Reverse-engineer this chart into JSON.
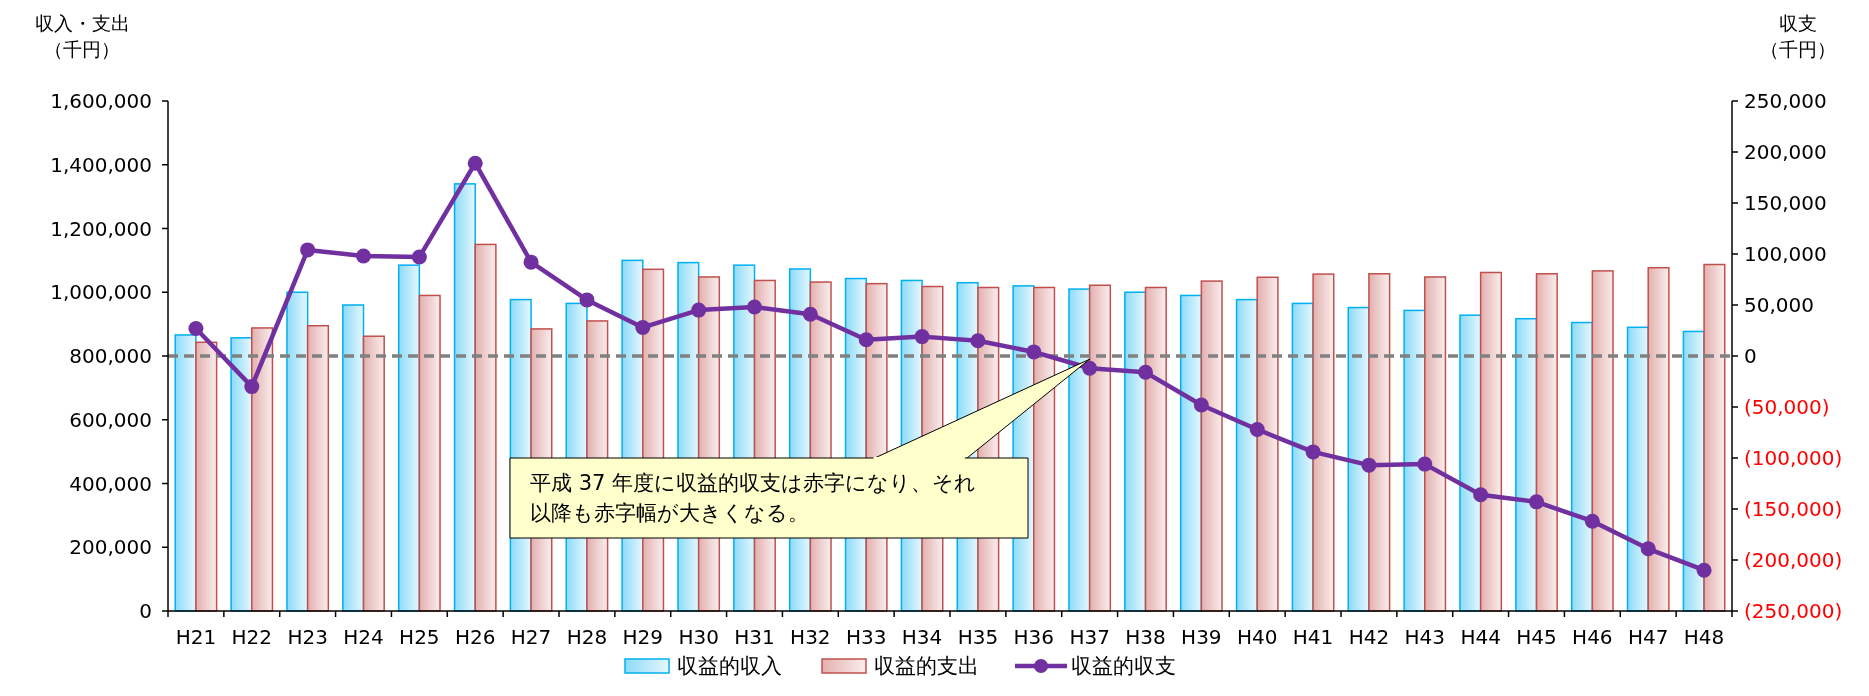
{
  "chart_data": {
    "type": "bar",
    "ylabel": "収入・支出（千円）",
    "y2label": "収支（千円）",
    "categories": [
      "H21",
      "H22",
      "H23",
      "H24",
      "H25",
      "H26",
      "H27",
      "H28",
      "H29",
      "H30",
      "H31",
      "H32",
      "H33",
      "H34",
      "H35",
      "H36",
      "H37",
      "H38",
      "H39",
      "H40",
      "H41",
      "H42",
      "H43",
      "H44",
      "H45",
      "H46",
      "H47",
      "H48"
    ],
    "series": [
      {
        "name": "収益的収入",
        "color": "#00b0f0",
        "values": [
          866000,
          857000,
          1000000,
          960000,
          1085000,
          1340000,
          977000,
          965000,
          1100000,
          1093000,
          1085000,
          1073000,
          1043000,
          1037000,
          1030000,
          1020000,
          1010000,
          1000000,
          990000,
          977000,
          965000,
          952000,
          943000,
          928000,
          917000,
          905000,
          890000,
          877000
        ]
      },
      {
        "name": "収益的支出",
        "color": "#c0504d",
        "values": [
          843000,
          888000,
          895000,
          862000,
          990000,
          1150000,
          885000,
          910000,
          1072000,
          1048000,
          1037000,
          1032000,
          1027000,
          1018000,
          1015000,
          1015000,
          1022000,
          1015000,
          1035000,
          1047000,
          1057000,
          1058000,
          1048000,
          1062000,
          1058000,
          1067000,
          1077000,
          1087000
        ]
      },
      {
        "name": "収益的収支",
        "type": "line",
        "axis": "y2",
        "color": "#7030a0",
        "values": [
          27000,
          -30000,
          104000,
          98000,
          97000,
          189000,
          92000,
          55000,
          28000,
          45000,
          48000,
          41000,
          16000,
          19000,
          15000,
          4000,
          -12000,
          -16000,
          -48000,
          -72000,
          -94000,
          -107000,
          -106000,
          -136000,
          -143000,
          -162000,
          -189000,
          -210000
        ]
      }
    ],
    "ylim": [
      0,
      1600000
    ],
    "yticks": [
      0,
      {
        "value": 200000,
        "label": "200,000"
      },
      {
        "value": 400000,
        "label": "400,000"
      },
      {
        "value": 600000,
        "label": "600,000"
      },
      {
        "value": 800000,
        "label": "800,000"
      },
      {
        "value": 1000000,
        "label": "1,000,000"
      },
      {
        "value": 1200000,
        "label": "1,200,000"
      },
      {
        "value": 1400000,
        "label": "1,400,000"
      },
      {
        "value": 1600000,
        "label": "1,600,000"
      }
    ],
    "y2lim": [
      -250000,
      250000
    ],
    "y2ticks": [
      {
        "value": -250000,
        "label": "(250,000)"
      },
      {
        "value": -200000,
        "label": "(200,000)"
      },
      {
        "value": -150000,
        "label": "(150,000)"
      },
      {
        "value": -100000,
        "label": "(100,000)"
      },
      {
        "value": -50000,
        "label": "(50,000)"
      },
      0,
      {
        "value": 50000,
        "label": "50,000"
      },
      {
        "value": 100000,
        "label": "100,000"
      },
      {
        "value": 150000,
        "label": "150,000"
      },
      {
        "value": 200000,
        "label": "200,000"
      },
      {
        "value": 250000,
        "label": "250,000"
      }
    ],
    "ref_lines": [
      {
        "axis": "y2",
        "value": 0,
        "color": "#808080",
        "line_style": "dashed"
      }
    ],
    "annotations": [
      {
        "text": "平成 37 年度に収益的収支は赤字になり、それ以降も赤字幅が大きくなる。",
        "x": "H37",
        "y": 790000
      }
    ],
    "marker": "circle",
    "line_style": "solid",
    "legend": "bottom",
    "grid": false
  }
}
